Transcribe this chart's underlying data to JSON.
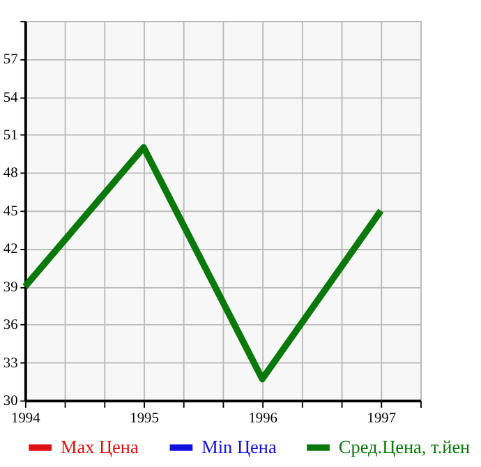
{
  "chart_data": {
    "type": "line",
    "x": [
      1994,
      1995,
      1996,
      1997
    ],
    "series": [
      {
        "name": "Max Цена",
        "color": "#dd1111",
        "values": [
          null,
          null,
          null,
          null
        ]
      },
      {
        "name": "Min Цена",
        "color": "#1111dd",
        "values": [
          null,
          null,
          null,
          null
        ]
      },
      {
        "name": "Сред.Цена, т.йен",
        "color": "#0a780a",
        "values": [
          39,
          50,
          31.7,
          45
        ]
      }
    ],
    "xlim": [
      1994,
      1997.333
    ],
    "xticks": [
      1994,
      {
        "value": 1994.333,
        "label": null
      },
      {
        "value": 1994.667,
        "label": null
      },
      1995,
      {
        "value": 1995.333,
        "label": null
      },
      {
        "value": 1995.667,
        "label": null
      },
      1996,
      {
        "value": 1996.333,
        "label": null
      },
      {
        "value": 1996.667,
        "label": null
      },
      1997,
      {
        "value": 1997.333,
        "label": null
      }
    ],
    "ylim": [
      30,
      60
    ],
    "yticks": [
      30,
      33,
      36,
      39,
      42,
      45,
      48,
      51,
      54,
      57,
      {
        "value": 60,
        "label": null
      }
    ],
    "grid": true,
    "legend": "bottom",
    "marker": "none",
    "line_style": "solid"
  }
}
